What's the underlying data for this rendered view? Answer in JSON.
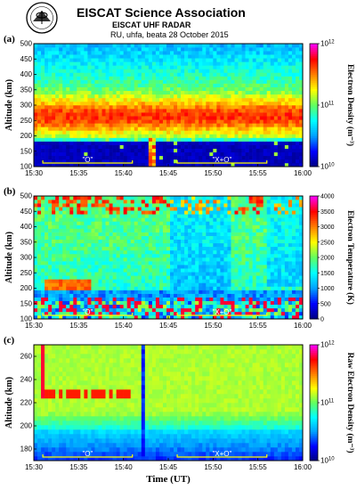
{
  "header": {
    "org": "EISCAT Science Association",
    "radar": "EISCAT UHF RADAR",
    "experiment": "RU, uhfa, beata 28 October 2015"
  },
  "colors": {
    "colormap": [
      "#000080",
      "#0000ff",
      "#00a0ff",
      "#00ffff",
      "#60ff60",
      "#ffff00",
      "#ff8000",
      "#ff0000",
      "#ff00ff"
    ],
    "annotation": "#ffff00",
    "annotation_text": "#ffffff"
  },
  "chart_data": [
    {
      "id": "a",
      "type": "heatmap",
      "panel_label": "(a)",
      "ylabel": "Altitude (km)",
      "colorbar_label": "Electron Density (m⁻³)",
      "x_range": [
        "15:30",
        "16:00"
      ],
      "xticks": [
        "15:30",
        "15:35",
        "15:40",
        "15:45",
        "15:50",
        "15:55",
        "16:00"
      ],
      "ylim": [
        100,
        500
      ],
      "yticks": [
        100,
        150,
        200,
        250,
        300,
        350,
        400,
        450,
        500
      ],
      "ytick_labels": [
        "100",
        "150",
        "200",
        "250",
        "300",
        "350",
        "400",
        "450",
        "500"
      ],
      "colorbar_scale": "log",
      "colorbar_ticks": [
        {
          "value": 10000000000.0,
          "label": "10",
          "exp": "10"
        },
        {
          "value": 100000000000.0,
          "label": "10",
          "exp": "11"
        },
        {
          "value": 1000000000000.0,
          "label": "10",
          "exp": "12"
        }
      ],
      "annotations": [
        {
          "text": "\"O\"",
          "from": "15:31",
          "to": "15:41"
        },
        {
          "text": "\"X+O\"",
          "from": "15:46",
          "to": "15:56"
        }
      ]
    },
    {
      "id": "b",
      "type": "heatmap",
      "panel_label": "(b)",
      "ylabel": "Altitude (km)",
      "colorbar_label": "Electron Temperature (K)",
      "x_range": [
        "15:30",
        "16:00"
      ],
      "xticks": [
        "15:30",
        "15:35",
        "15:40",
        "15:45",
        "15:50",
        "15:55",
        "16:00"
      ],
      "ylim": [
        100,
        500
      ],
      "yticks": [
        100,
        150,
        200,
        250,
        300,
        350,
        400,
        450,
        500
      ],
      "ytick_labels": [
        "100",
        "150",
        "200",
        "250",
        "300",
        "350",
        "400",
        "450",
        "500"
      ],
      "colorbar_scale": "linear",
      "colorbar_ticks": [
        {
          "value": 0,
          "label": "0"
        },
        {
          "value": 500,
          "label": "500"
        },
        {
          "value": 1000,
          "label": "1000"
        },
        {
          "value": 1500,
          "label": "1500"
        },
        {
          "value": 2000,
          "label": "2000"
        },
        {
          "value": 2500,
          "label": "2500"
        },
        {
          "value": 3000,
          "label": "3000"
        },
        {
          "value": 3500,
          "label": "3500"
        },
        {
          "value": 4000,
          "label": "4000"
        }
      ],
      "annotations": [
        {
          "text": "\"O\"",
          "from": "15:31",
          "to": "15:41"
        },
        {
          "text": "\"X+O\"",
          "from": "15:46",
          "to": "15:56"
        }
      ]
    },
    {
      "id": "c",
      "type": "heatmap",
      "panel_label": "(c)",
      "ylabel": "Altitude (km)",
      "xlabel": "Time (UT)",
      "colorbar_label": "Raw Electron Density (m⁻³)",
      "x_range": [
        "15:30",
        "16:00"
      ],
      "xticks": [
        "15:30",
        "15:35",
        "15:40",
        "15:45",
        "15:50",
        "15:55",
        "16:00"
      ],
      "xtick_labels": [
        "15:30",
        "15:35",
        "15:40",
        "15:45",
        "15:50",
        "15:55",
        "16:00"
      ],
      "ylim": [
        170,
        270
      ],
      "yticks": [
        180,
        200,
        220,
        240,
        260
      ],
      "ytick_labels": [
        "180",
        "200",
        "220",
        "240",
        "260"
      ],
      "colorbar_scale": "log",
      "colorbar_ticks": [
        {
          "value": 10000000000.0,
          "label": "10",
          "exp": "10"
        },
        {
          "value": 100000000000.0,
          "label": "10",
          "exp": "11"
        },
        {
          "value": 1000000000000.0,
          "label": "10",
          "exp": "12"
        }
      ],
      "annotations": [
        {
          "text": "\"O\"",
          "from": "15:31",
          "to": "15:41"
        },
        {
          "text": "\"X+O\"",
          "from": "15:46",
          "to": "15:56"
        }
      ]
    }
  ]
}
